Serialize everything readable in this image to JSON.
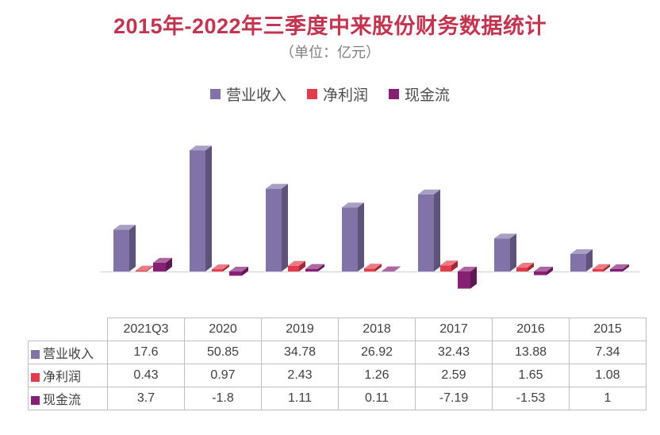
{
  "title": "2015年-2022年三季度中来股份财务数据统计",
  "subtitle": "（单位：亿元）",
  "colors": {
    "title": "#C23450",
    "axis": "#D9D9D9",
    "table_border": "#BFBFBF",
    "revenue": "#8172A8",
    "profit": "#E13B4C",
    "cashflow": "#862074"
  },
  "legend": [
    {
      "label": "营业收入",
      "color": "#8172A8"
    },
    {
      "label": "净利润",
      "color": "#E13B4C"
    },
    {
      "label": "现金流",
      "color": "#862074"
    }
  ],
  "chart_data": {
    "type": "bar",
    "style": "3d-bar",
    "title": "2015年-2022年三季度中来股份财务数据统计",
    "subtitle": "（单位：亿元）",
    "categories": [
      "2021Q3",
      "2020",
      "2019",
      "2018",
      "2017",
      "2016",
      "2015"
    ],
    "series": [
      {
        "name": "营业收入",
        "color": "#8172A8",
        "values": [
          17.6,
          50.85,
          34.78,
          26.92,
          32.43,
          13.88,
          7.34
        ]
      },
      {
        "name": "净利润",
        "color": "#E13B4C",
        "values": [
          0.43,
          0.97,
          2.43,
          1.26,
          2.59,
          1.65,
          1.08
        ]
      },
      {
        "name": "现金流",
        "color": "#862074",
        "values": [
          3.7,
          -1.8,
          1.11,
          0.11,
          -7.19,
          -1.53,
          1
        ]
      }
    ],
    "xlabel": "",
    "ylabel": "",
    "ylim": [
      -10,
      55
    ],
    "grid": false,
    "legend_position": "top",
    "axis_labels_hidden": true
  },
  "table": {
    "header": [
      "",
      "2021Q3",
      "2020",
      "2019",
      "2018",
      "2017",
      "2016",
      "2015"
    ],
    "rows": [
      {
        "label": "营业收入",
        "color": "#8172A8",
        "values": [
          "17.6",
          "50.85",
          "34.78",
          "26.92",
          "32.43",
          "13.88",
          "7.34"
        ]
      },
      {
        "label": "净利润",
        "color": "#E13B4C",
        "values": [
          "0.43",
          "0.97",
          "2.43",
          "1.26",
          "2.59",
          "1.65",
          "1.08"
        ]
      },
      {
        "label": "现金流",
        "color": "#862074",
        "values": [
          "3.7",
          "-1.8",
          "1.11",
          "0.11",
          "-7.19",
          "-1.53",
          "1"
        ]
      }
    ]
  }
}
